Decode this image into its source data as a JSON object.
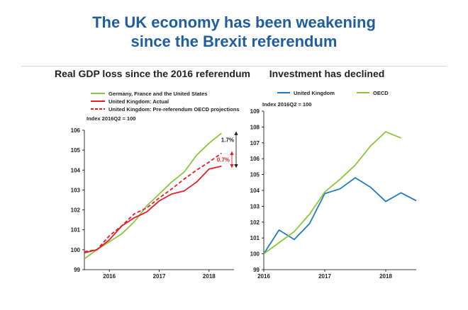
{
  "page_title": {
    "line1": "The UK economy has been weakening",
    "line2": "since the Brexit referendum"
  },
  "colors": {
    "title": "#1f5d9e",
    "green": "#8cc63f",
    "red": "#e31f26",
    "blue": "#1f7bc1"
  },
  "chart_data": [
    {
      "type": "line",
      "title": "Real GDP loss since the 2016 referendum",
      "axis_note": "Index 2016Q2 = 100",
      "ylim": [
        99,
        106
      ],
      "yticks": [
        "99",
        "100",
        "101",
        "102",
        "103",
        "104",
        "105",
        "106"
      ],
      "xlim": [
        2015.75,
        2018.75
      ],
      "xticks": [
        {
          "label": "2016",
          "x": 2016.25
        },
        {
          "label": "2017",
          "x": 2017.25
        },
        {
          "label": "2018",
          "x": 2018.25
        }
      ],
      "legend_position": "top-left",
      "series": [
        {
          "name": "Germany, France and the United States",
          "color": "#8cc63f",
          "dash": false,
          "x": [
            2015.75,
            2016.0,
            2016.25,
            2016.5,
            2016.75,
            2017.0,
            2017.25,
            2017.5,
            2017.75,
            2018.0,
            2018.25,
            2018.5
          ],
          "y": [
            99.55,
            100.0,
            100.4,
            100.8,
            101.4,
            102.2,
            102.8,
            103.4,
            103.9,
            104.75,
            105.35,
            105.85
          ]
        },
        {
          "name": "United Kingdom: Actual",
          "color": "#e31f26",
          "dash": false,
          "x": [
            2015.75,
            2016.0,
            2016.25,
            2016.5,
            2016.75,
            2017.0,
            2017.25,
            2017.5,
            2017.75,
            2018.0,
            2018.25,
            2018.5
          ],
          "y": [
            99.85,
            100.0,
            100.5,
            101.2,
            101.6,
            101.9,
            102.45,
            102.8,
            102.95,
            103.4,
            104.05,
            104.2
          ]
        },
        {
          "name": "United Kingdom: Pre-referendum OECD projections",
          "color": "#e31f26",
          "dash": true,
          "x": [
            2015.75,
            2016.0,
            2016.25,
            2016.5,
            2016.75,
            2017.0,
            2017.25,
            2017.5,
            2017.75,
            2018.0,
            2018.25,
            2018.5
          ],
          "y": [
            99.9,
            100.0,
            100.7,
            101.2,
            101.8,
            102.1,
            102.6,
            103.05,
            103.55,
            104.0,
            104.4,
            104.85
          ]
        }
      ],
      "annotations": [
        {
          "text": "1.7%",
          "color": "#222222"
        },
        {
          "text": "0.7%",
          "color": "#e31f26"
        }
      ]
    },
    {
      "type": "line",
      "title": "Investment has declined",
      "axis_note": "Index 2016Q2 = 100",
      "ylim": [
        99,
        109
      ],
      "yticks": [
        "99",
        "100",
        "101",
        "102",
        "103",
        "104",
        "105",
        "106",
        "107",
        "108",
        "109"
      ],
      "xlim": [
        2016.25,
        2018.75
      ],
      "xticks": [
        {
          "label": "2016",
          "x": 2016.25
        },
        {
          "label": "2017",
          "x": 2017.25
        },
        {
          "label": "2018",
          "x": 2018.25
        }
      ],
      "legend_position": "top",
      "series": [
        {
          "name": "United Kingdom",
          "color": "#1f7bc1",
          "dash": false,
          "x": [
            2016.25,
            2016.5,
            2016.75,
            2017.0,
            2017.25,
            2017.5,
            2017.75,
            2018.0,
            2018.25,
            2018.5,
            2018.75
          ],
          "y": [
            100.0,
            101.5,
            100.9,
            101.9,
            103.8,
            104.1,
            104.8,
            104.2,
            103.3,
            103.85,
            103.35
          ]
        },
        {
          "name": "OECD",
          "color": "#8cc63f",
          "dash": false,
          "x": [
            2016.25,
            2016.5,
            2016.75,
            2017.0,
            2017.25,
            2017.5,
            2017.75,
            2018.0,
            2018.25,
            2018.5
          ],
          "y": [
            100.0,
            100.7,
            101.4,
            102.5,
            103.9,
            104.7,
            105.6,
            106.8,
            107.7,
            107.3
          ]
        }
      ]
    }
  ]
}
